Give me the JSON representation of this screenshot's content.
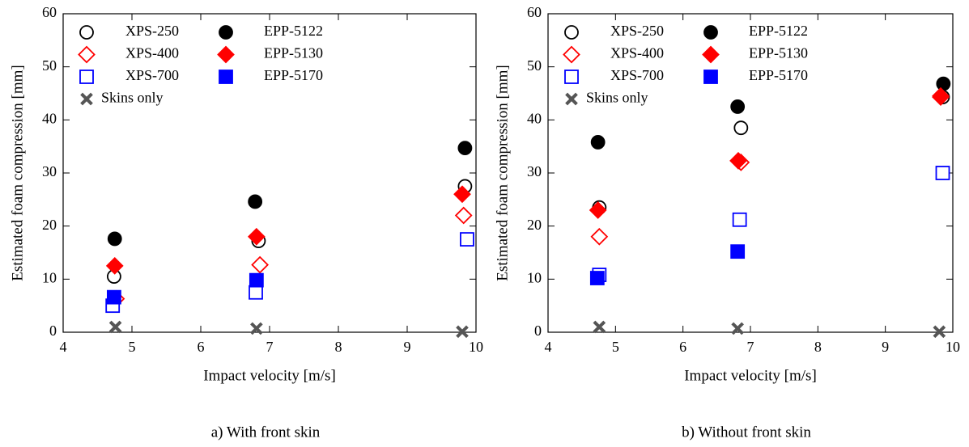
{
  "chart_data": [
    {
      "type": "scatter",
      "xlabel": "Impact velocity [m/s]",
      "ylabel": "Estimated foam compression [mm]",
      "caption": "a) With front skin",
      "xlim": [
        4,
        10
      ],
      "ylim": [
        0,
        60
      ],
      "xticks": [
        4,
        5,
        6,
        7,
        8,
        9,
        10
      ],
      "yticks": [
        0,
        10,
        20,
        30,
        40,
        50,
        60
      ],
      "series": [
        {
          "name": "XPS-250",
          "color": "#000000",
          "marker": "circle",
          "filled": false,
          "x": [
            4.74,
            6.84,
            9.84
          ],
          "values": [
            10.5,
            17.2,
            27.5
          ]
        },
        {
          "name": "XPS-400",
          "color": "#ff0000",
          "marker": "diamond",
          "filled": false,
          "x": [
            4.77,
            6.86,
            9.82
          ],
          "values": [
            6.3,
            12.7,
            22
          ]
        },
        {
          "name": "XPS-700",
          "color": "#0000ff",
          "marker": "square",
          "filled": false,
          "x": [
            4.72,
            6.8,
            9.87
          ],
          "values": [
            5,
            7.5,
            17.5
          ]
        },
        {
          "name": "Skins only",
          "color": "#555555",
          "marker": "x",
          "filled": true,
          "x": [
            4.76,
            6.81,
            9.8
          ],
          "values": [
            1,
            0.7,
            0.1
          ]
        },
        {
          "name": "EPP-5122",
          "color": "#000000",
          "marker": "circle",
          "filled": true,
          "x": [
            4.75,
            6.79,
            9.84
          ],
          "values": [
            17.6,
            24.6,
            34.7
          ]
        },
        {
          "name": "EPP-5130",
          "color": "#ff0000",
          "marker": "diamond",
          "filled": true,
          "x": [
            4.75,
            6.81,
            9.8
          ],
          "values": [
            12.5,
            18,
            26
          ]
        },
        {
          "name": "EPP-5170",
          "color": "#0000ff",
          "marker": "square",
          "filled": true,
          "x": [
            4.74,
            6.81,
            null
          ],
          "values": [
            6.6,
            9.8,
            null
          ]
        }
      ]
    },
    {
      "type": "scatter",
      "xlabel": "Impact velocity [m/s]",
      "ylabel": "Estimated foam compression [mm]",
      "caption": "b) Without front skin",
      "xlim": [
        4,
        10
      ],
      "ylim": [
        0,
        60
      ],
      "xticks": [
        4,
        5,
        6,
        7,
        8,
        9,
        10
      ],
      "yticks": [
        0,
        10,
        20,
        30,
        40,
        50,
        60
      ],
      "series": [
        {
          "name": "XPS-250",
          "color": "#000000",
          "marker": "circle",
          "filled": false,
          "x": [
            4.76,
            6.86,
            9.85
          ],
          "values": [
            23.5,
            38.5,
            44.3
          ]
        },
        {
          "name": "XPS-400",
          "color": "#ff0000",
          "marker": "diamond",
          "filled": false,
          "x": [
            4.76,
            6.86,
            9.82
          ],
          "values": [
            18,
            32,
            44.3
          ]
        },
        {
          "name": "XPS-700",
          "color": "#0000ff",
          "marker": "square",
          "filled": false,
          "x": [
            4.76,
            6.84,
            9.85
          ],
          "values": [
            10.8,
            21.2,
            30
          ]
        },
        {
          "name": "Skins only",
          "color": "#555555",
          "marker": "x",
          "filled": true,
          "x": [
            4.76,
            6.81,
            9.8
          ],
          "values": [
            1,
            0.7,
            0.1
          ]
        },
        {
          "name": "EPP-5122",
          "color": "#000000",
          "marker": "circle",
          "filled": true,
          "x": [
            4.74,
            6.81,
            9.86
          ],
          "values": [
            35.8,
            42.5,
            46.8
          ]
        },
        {
          "name": "EPP-5130",
          "color": "#ff0000",
          "marker": "diamond",
          "filled": true,
          "x": [
            4.74,
            6.82,
            9.82
          ],
          "values": [
            23,
            32.3,
            44.5
          ]
        },
        {
          "name": "EPP-5170",
          "color": "#0000ff",
          "marker": "square",
          "filled": true,
          "x": [
            4.73,
            6.81,
            null
          ],
          "values": [
            10.2,
            15.2,
            null
          ]
        }
      ]
    }
  ]
}
